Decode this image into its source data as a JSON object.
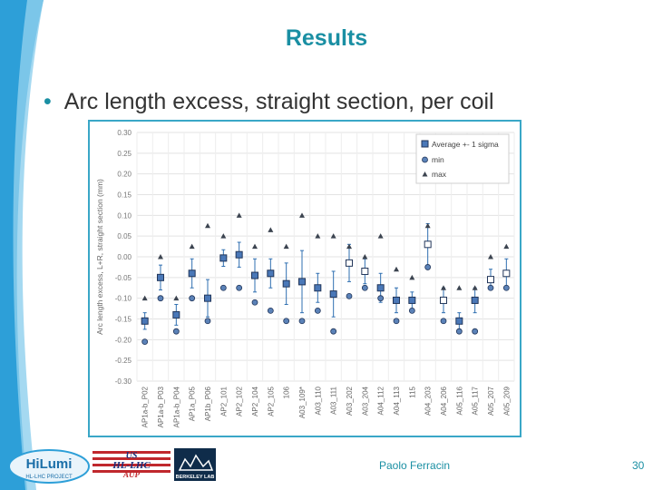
{
  "slide": {
    "title": "Results",
    "bullet": "Arc length excess, straight section, per coil",
    "author": "Paolo Ferracin",
    "page_number": "30",
    "accent_color": "#1a8fa3"
  },
  "logos": {
    "hilumi": {
      "name": "HiLumi",
      "sub": "HL-LHC PROJECT"
    },
    "us_hllhc": {
      "line1": "US",
      "line2": "HL-LHC",
      "line3": "AUP"
    },
    "berkeley": {
      "label": "BERKELEY LAB"
    }
  },
  "chart_data": {
    "type": "scatter",
    "ylabel": "Arc length excess, L+R, straight section (mm)",
    "ylim": [
      -0.3,
      0.3
    ],
    "yticks": [
      "0.30",
      "0.25",
      "0.20",
      "0.15",
      "0.10",
      "0.05",
      "0.00",
      "-0.05",
      "-0.10",
      "-0.15",
      "-0.20",
      "-0.25",
      "-0.30"
    ],
    "grid": true,
    "legend_position": "top-right",
    "categories": [
      "AP1a-b_P02",
      "AP1a-b_P03",
      "AP1a-b_P04",
      "AP1a_P05",
      "AP1b_P06",
      "AP2_101",
      "AP2_102",
      "AP2_104",
      "AP2_105",
      "106",
      "A03_109*",
      "A03_110",
      "A03_111",
      "A03_202",
      "A03_204",
      "A04_112",
      "A04_113",
      "115",
      "A04_203",
      "A04_206",
      "A05_116",
      "A05_117",
      "A05_207",
      "A05_209"
    ],
    "series": [
      {
        "name": "Average +- 1 sigma",
        "marker": "square",
        "values": [
          -0.155,
          -0.05,
          -0.14,
          -0.04,
          -0.1,
          -0.003,
          0.005,
          -0.045,
          -0.04,
          -0.065,
          -0.06,
          -0.075,
          -0.09,
          -0.015,
          -0.035,
          -0.075,
          -0.105,
          -0.105,
          0.03,
          -0.105,
          -0.155,
          -0.105,
          -0.055,
          -0.04
        ],
        "sigma": [
          0.02,
          0.03,
          0.025,
          0.035,
          0.045,
          0.02,
          0.03,
          0.04,
          0.035,
          0.05,
          0.075,
          0.035,
          0.055,
          0.045,
          0.03,
          0.035,
          0.03,
          0.02,
          0.05,
          0.03,
          0.02,
          0.03,
          0.025,
          0.035
        ],
        "filled": [
          true,
          true,
          true,
          true,
          true,
          true,
          true,
          true,
          true,
          true,
          true,
          true,
          true,
          false,
          false,
          true,
          true,
          true,
          false,
          false,
          true,
          true,
          false,
          false
        ]
      },
      {
        "name": "min",
        "marker": "circle",
        "values": [
          -0.205,
          -0.1,
          -0.18,
          -0.1,
          -0.155,
          -0.075,
          -0.075,
          -0.11,
          -0.13,
          -0.155,
          -0.155,
          -0.13,
          -0.18,
          -0.095,
          -0.075,
          -0.1,
          -0.155,
          -0.13,
          -0.025,
          -0.155,
          -0.18,
          -0.18,
          -0.075,
          -0.075
        ]
      },
      {
        "name": "max",
        "marker": "triangle",
        "values": [
          -0.1,
          0.0,
          -0.1,
          0.025,
          0.075,
          0.05,
          0.1,
          0.025,
          0.065,
          0.025,
          0.1,
          0.05,
          0.05,
          0.025,
          0.0,
          0.05,
          -0.03,
          -0.05,
          0.075,
          -0.075,
          -0.075,
          -0.075,
          0.0,
          0.025
        ]
      }
    ]
  }
}
